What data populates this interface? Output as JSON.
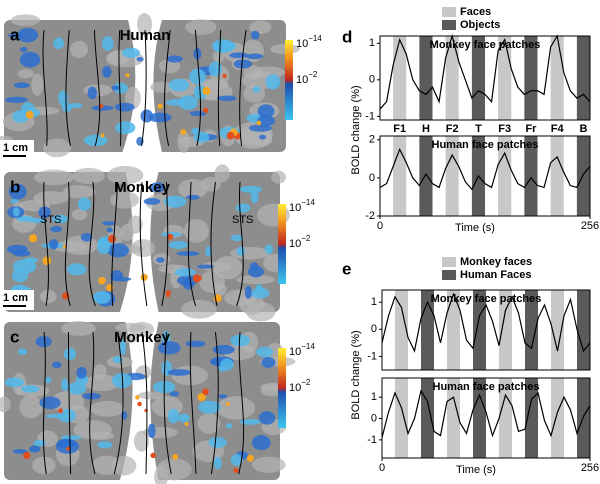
{
  "panels": {
    "a": {
      "letter": "a",
      "title": "Human",
      "scale_bar": "1 cm",
      "colorbar": {
        "top": {
          "base": "10",
          "exponent": "−14"
        },
        "middle": {
          "base": "10",
          "exponent": "−2"
        }
      }
    },
    "b": {
      "letter": "b",
      "title": "Monkey",
      "sulcus_labels": [
        "STS",
        "STS"
      ],
      "scale_bar": "1 cm",
      "colorbar": {
        "top": {
          "base": "10",
          "exponent": "−14"
        },
        "middle": {
          "base": "10",
          "exponent": "−2"
        }
      }
    },
    "c": {
      "letter": "c",
      "title": "Monkey",
      "colorbar": {
        "top": {
          "base": "10",
          "exponent": "−14"
        },
        "middle": {
          "base": "10",
          "exponent": "−2"
        }
      }
    },
    "d": {
      "letter": "d",
      "legend": [
        {
          "name": "Faces",
          "color": "#c8c8c8"
        },
        {
          "name": "Objects",
          "color": "#5a5a5a"
        }
      ],
      "ylabel": "BOLD change (%)"
    },
    "e": {
      "letter": "e",
      "legend": [
        {
          "name": "Monkey faces",
          "color": "#c8c8c8"
        },
        {
          "name": "Human Faces",
          "color": "#5a5a5a"
        }
      ],
      "ylabel": "BOLD change (%)"
    }
  },
  "chart_data": [
    {
      "type": "line",
      "title": "Monkey face patches",
      "xlim": [
        0,
        256
      ],
      "ylim": [
        -1.1,
        1.2
      ],
      "yticks": [
        -1,
        0,
        1
      ],
      "color": "#000000",
      "blocks": [
        {
          "label": "F1",
          "start": 16,
          "end": 32,
          "color": "#c8c8c8"
        },
        {
          "label": "H",
          "start": 48,
          "end": 64,
          "color": "#5a5a5a"
        },
        {
          "label": "F2",
          "start": 80,
          "end": 96,
          "color": "#c8c8c8"
        },
        {
          "label": "T",
          "start": 112,
          "end": 128,
          "color": "#5a5a5a"
        },
        {
          "label": "F3",
          "start": 144,
          "end": 160,
          "color": "#c8c8c8"
        },
        {
          "label": "Fr",
          "start": 176,
          "end": 192,
          "color": "#5a5a5a"
        },
        {
          "label": "F4",
          "start": 208,
          "end": 224,
          "color": "#c8c8c8"
        },
        {
          "label": "B",
          "start": 240,
          "end": 256,
          "color": "#5a5a5a"
        }
      ],
      "x": [
        0,
        8,
        16,
        24,
        32,
        40,
        48,
        56,
        64,
        72,
        80,
        88,
        96,
        104,
        112,
        120,
        128,
        136,
        144,
        152,
        160,
        168,
        176,
        184,
        192,
        200,
        208,
        216,
        224,
        232,
        240,
        248,
        256
      ],
      "values": [
        -0.8,
        -0.6,
        0.4,
        1.1,
        0.7,
        0.0,
        -0.3,
        -0.4,
        -0.2,
        -0.6,
        0.6,
        1.2,
        0.5,
        0.0,
        -0.5,
        -0.3,
        -0.4,
        -0.6,
        0.8,
        1.1,
        0.3,
        -0.2,
        -0.4,
        -0.3,
        -0.3,
        -0.4,
        0.9,
        1.2,
        0.2,
        -0.3,
        -0.5,
        -0.4,
        -0.6
      ]
    },
    {
      "type": "line",
      "title": "Human face patches",
      "xlim": [
        0,
        256
      ],
      "ylim": [
        -2,
        2.2
      ],
      "yticks": [
        -2,
        0,
        2
      ],
      "xticks": [
        0,
        256
      ],
      "xlabel": "Time (s)",
      "color": "#000000",
      "blocks": [
        {
          "start": 16,
          "end": 32,
          "color": "#c8c8c8"
        },
        {
          "start": 48,
          "end": 64,
          "color": "#5a5a5a"
        },
        {
          "start": 80,
          "end": 96,
          "color": "#c8c8c8"
        },
        {
          "start": 112,
          "end": 128,
          "color": "#5a5a5a"
        },
        {
          "start": 144,
          "end": 160,
          "color": "#c8c8c8"
        },
        {
          "start": 176,
          "end": 192,
          "color": "#5a5a5a"
        },
        {
          "start": 208,
          "end": 224,
          "color": "#c8c8c8"
        },
        {
          "start": 240,
          "end": 256,
          "color": "#5a5a5a"
        }
      ],
      "x": [
        0,
        8,
        16,
        24,
        32,
        40,
        48,
        56,
        64,
        72,
        80,
        88,
        96,
        104,
        112,
        120,
        128,
        136,
        144,
        152,
        160,
        168,
        176,
        184,
        192,
        200,
        208,
        216,
        224,
        232,
        240,
        248,
        256
      ],
      "values": [
        -0.5,
        -0.3,
        0.6,
        1.5,
        0.8,
        0.0,
        -0.4,
        0.2,
        -0.3,
        -0.5,
        0.5,
        1.2,
        0.6,
        -0.2,
        -0.6,
        0.1,
        -0.3,
        -0.5,
        0.7,
        1.3,
        0.4,
        -0.3,
        -0.5,
        0.0,
        -0.4,
        -0.5,
        0.8,
        1.1,
        0.3,
        -0.4,
        -0.5,
        0.2,
        0.6
      ]
    },
    {
      "type": "line",
      "title": "Monkey face patches",
      "xlim": [
        0,
        256
      ],
      "ylim": [
        -1.5,
        1.45
      ],
      "yticks": [
        -1,
        0,
        1
      ],
      "color": "#000000",
      "blocks": [
        {
          "start": 16,
          "end": 32,
          "color": "#c8c8c8"
        },
        {
          "start": 48,
          "end": 64,
          "color": "#5a5a5a"
        },
        {
          "start": 80,
          "end": 96,
          "color": "#c8c8c8"
        },
        {
          "start": 112,
          "end": 128,
          "color": "#5a5a5a"
        },
        {
          "start": 144,
          "end": 160,
          "color": "#c8c8c8"
        },
        {
          "start": 176,
          "end": 192,
          "color": "#5a5a5a"
        },
        {
          "start": 208,
          "end": 224,
          "color": "#c8c8c8"
        },
        {
          "start": 240,
          "end": 256,
          "color": "#5a5a5a"
        }
      ],
      "x": [
        0,
        8,
        16,
        24,
        32,
        40,
        48,
        56,
        64,
        72,
        80,
        88,
        96,
        104,
        112,
        120,
        128,
        136,
        144,
        152,
        160,
        168,
        176,
        184,
        192,
        200,
        208,
        216,
        224,
        232,
        240,
        248,
        256
      ],
      "values": [
        -0.5,
        0.5,
        1.2,
        0.8,
        -0.3,
        -0.8,
        0.4,
        1.0,
        0.5,
        -0.5,
        0.6,
        1.3,
        0.7,
        -0.4,
        -0.7,
        0.5,
        0.9,
        0.3,
        -0.6,
        0.7,
        1.2,
        0.6,
        -0.5,
        -0.7,
        0.4,
        0.9,
        0.2,
        -0.8,
        0.5,
        1.1,
        0.0,
        -0.8,
        -0.5
      ]
    },
    {
      "type": "line",
      "title": "Human face patches",
      "xlim": [
        0,
        256
      ],
      "ylim": [
        -1.85,
        1.9
      ],
      "yticks": [
        -1,
        0,
        1
      ],
      "xticks": [
        0,
        256
      ],
      "xlabel": "Time (s)",
      "color": "#000000",
      "blocks": [
        {
          "start": 16,
          "end": 32,
          "color": "#c8c8c8"
        },
        {
          "start": 48,
          "end": 64,
          "color": "#5a5a5a"
        },
        {
          "start": 80,
          "end": 96,
          "color": "#c8c8c8"
        },
        {
          "start": 112,
          "end": 128,
          "color": "#5a5a5a"
        },
        {
          "start": 144,
          "end": 160,
          "color": "#c8c8c8"
        },
        {
          "start": 176,
          "end": 192,
          "color": "#5a5a5a"
        },
        {
          "start": 208,
          "end": 224,
          "color": "#c8c8c8"
        },
        {
          "start": 240,
          "end": 256,
          "color": "#5a5a5a"
        }
      ],
      "x": [
        0,
        8,
        16,
        24,
        32,
        40,
        48,
        56,
        64,
        72,
        80,
        88,
        96,
        104,
        112,
        120,
        128,
        136,
        144,
        152,
        160,
        168,
        176,
        184,
        192,
        200,
        208,
        216,
        224,
        232,
        240,
        248,
        256
      ],
      "values": [
        -0.9,
        0.3,
        1.2,
        0.5,
        -0.7,
        0.0,
        1.3,
        0.8,
        -0.6,
        -0.8,
        0.8,
        1.0,
        -0.2,
        -0.7,
        0.4,
        1.1,
        0.3,
        -0.8,
        0.0,
        1.1,
        0.6,
        -0.6,
        -0.5,
        0.9,
        1.2,
        -0.1,
        -0.8,
        0.3,
        1.0,
        0.4,
        -0.7,
        0.1,
        0.6
      ]
    }
  ]
}
